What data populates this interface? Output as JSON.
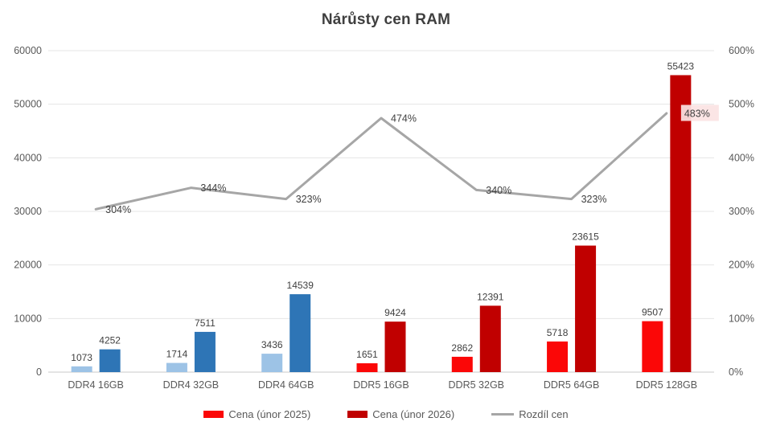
{
  "page": {
    "title": "Nárůsty cen RAM"
  },
  "chart_data": {
    "type": "combo-bar-line",
    "title": "Nárůsty cen RAM",
    "categories": [
      "DDR4 16GB",
      "DDR4 32GB",
      "DDR4 64GB",
      "DDR5 16GB",
      "DDR5 32GB",
      "DDR5 64GB",
      "DDR5 128GB"
    ],
    "series": [
      {
        "name": "Cena (únor 2025)",
        "type": "bar",
        "axis": "left",
        "values": [
          1073,
          1714,
          3436,
          1651,
          2862,
          5718,
          9507
        ],
        "point_colors": [
          "#9DC3E6",
          "#9DC3E6",
          "#9DC3E6",
          "#FB0707",
          "#FB0707",
          "#FB0707",
          "#FB0707"
        ],
        "legend_color": "#FB0707"
      },
      {
        "name": "Cena (únor 2026)",
        "type": "bar",
        "axis": "left",
        "values": [
          4252,
          7511,
          14539,
          9424,
          12391,
          23615,
          55423
        ],
        "point_colors": [
          "#2E75B6",
          "#2E75B6",
          "#2E75B6",
          "#C00000",
          "#C00000",
          "#C00000",
          "#C00000"
        ],
        "legend_color": "#C00000"
      },
      {
        "name": "Rozdíl cen",
        "type": "line",
        "axis": "right",
        "values": [
          304,
          344,
          323,
          474,
          340,
          323,
          483
        ],
        "labels": [
          "304%",
          "344%",
          "323%",
          "474%",
          "340%",
          "323%",
          "483%"
        ],
        "color": "#A6A6A6",
        "last_label_highlighted": true,
        "highlight_fill": "#FBE3E3"
      }
    ],
    "left_axis": {
      "min": 0,
      "max": 60000,
      "step": 10000,
      "tick_labels": [
        "0",
        "10000",
        "20000",
        "30000",
        "40000",
        "50000",
        "60000"
      ]
    },
    "right_axis": {
      "min": 0,
      "max": 600,
      "step": 100,
      "tick_labels": [
        "0%",
        "100%",
        "200%",
        "300%",
        "400%",
        "500%",
        "600%"
      ]
    },
    "grid": true,
    "legend_position": "bottom",
    "legend": [
      {
        "label": "Cena (únor 2025)",
        "color": "#FB0707",
        "marker": "bar"
      },
      {
        "label": "Cena (únor 2026)",
        "color": "#C00000",
        "marker": "bar"
      },
      {
        "label": "Rozdíl cen",
        "color": "#A6A6A6",
        "marker": "line"
      }
    ],
    "palette": {
      "ddr4_2025": "#9DC3E6",
      "ddr4_2026": "#2E75B6",
      "ddr5_2025": "#FB0707",
      "ddr5_2026": "#C00000",
      "line": "#A6A6A6",
      "gridline": "#E4E4E4",
      "axis_line": "#C8C8C8",
      "text": "#595959"
    }
  }
}
